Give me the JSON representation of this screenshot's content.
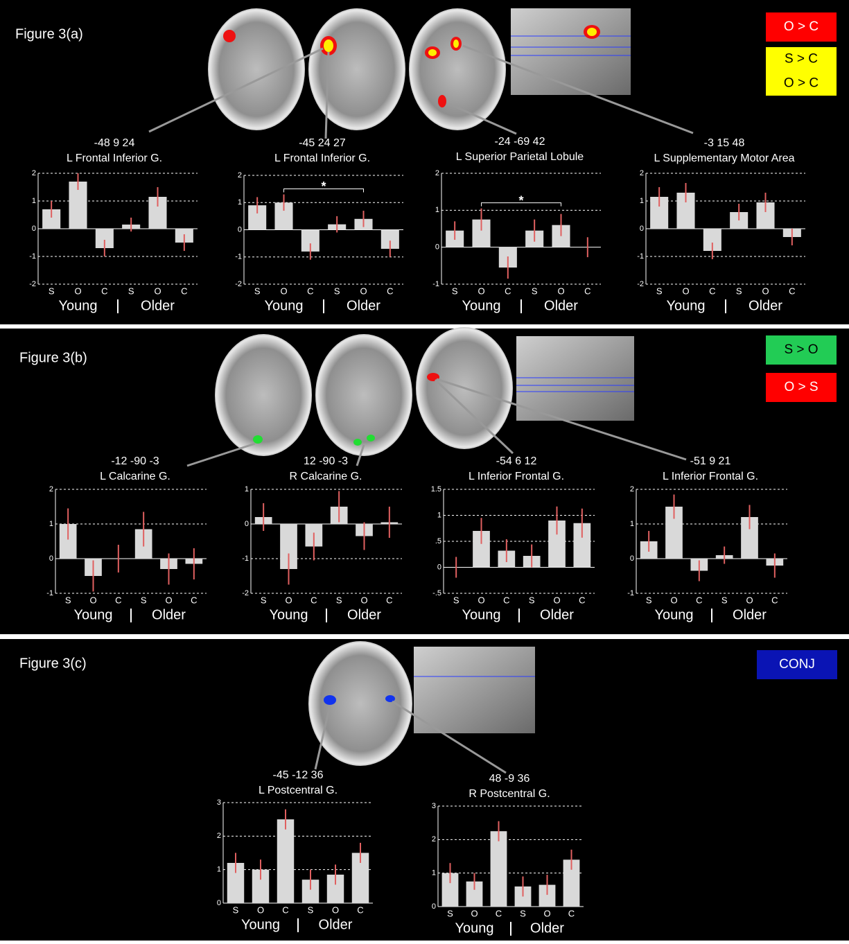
{
  "figure_labels": [
    "Figure 3(a)",
    "Figure 3(b)",
    "Figure 3(c)"
  ],
  "legends": [
    {
      "lines": [
        "O > C"
      ],
      "color": "#ff0000",
      "text_color": "#ffffff"
    },
    {
      "lines": [
        "S > C",
        "O > C"
      ],
      "color": "#ffff00",
      "text_color": "#000000"
    },
    {
      "lines": [
        "S > O"
      ],
      "color": "#22cc55",
      "text_color": "#000000"
    },
    {
      "lines": [
        "O > S"
      ],
      "color": "#ff0000",
      "text_color": "#ffffff"
    },
    {
      "lines": [
        "CONJ"
      ],
      "color": "#0a14b4",
      "text_color": "#ffffff"
    }
  ],
  "chart_data": [
    {
      "type": "bar",
      "title": "-48 9 24",
      "subtitle": "L Frontal Inferior G.",
      "categories": [
        "S",
        "O",
        "C",
        "S",
        "O",
        "C"
      ],
      "groups": [
        "Young",
        "Older"
      ],
      "values": [
        0.7,
        1.7,
        -0.7,
        0.15,
        1.15,
        -0.5
      ],
      "errors": [
        0.3,
        0.3,
        0.3,
        0.25,
        0.35,
        0.3
      ],
      "ylim": [
        -2,
        2
      ],
      "yticks": [
        -2,
        -1,
        0,
        1,
        2
      ],
      "color": "#d9d9d9",
      "error_color": "#e06060",
      "grid": true
    },
    {
      "type": "bar",
      "title": "-45 24 27",
      "subtitle": "L Frontal Inferior G.",
      "categories": [
        "S",
        "O",
        "C",
        "S",
        "O",
        "C"
      ],
      "groups": [
        "Young",
        "Older"
      ],
      "values": [
        0.9,
        1.0,
        -0.8,
        0.2,
        0.4,
        -0.7
      ],
      "errors": [
        0.3,
        0.3,
        0.3,
        0.3,
        0.3,
        0.3
      ],
      "ylim": [
        -2,
        2
      ],
      "yticks": [
        -2,
        -1,
        0,
        1,
        2
      ],
      "color": "#d9d9d9",
      "error_color": "#e06060",
      "grid": true,
      "significance": {
        "label": "*",
        "bars": [
          1,
          4
        ]
      }
    },
    {
      "type": "bar",
      "title": "-24 -69 42",
      "subtitle": "L Superior Parietal Lobule",
      "categories": [
        "S",
        "O",
        "C",
        "S",
        "O",
        "C"
      ],
      "groups": [
        "Young",
        "Older"
      ],
      "values": [
        0.45,
        0.75,
        -0.55,
        0.45,
        0.6,
        0.0
      ],
      "errors": [
        0.25,
        0.3,
        0.3,
        0.3,
        0.3,
        0.27
      ],
      "ylim": [
        -1,
        2
      ],
      "yticks": [
        -1,
        0,
        1,
        2
      ],
      "color": "#d9d9d9",
      "error_color": "#e06060",
      "grid": true,
      "significance": {
        "label": "*",
        "bars": [
          1,
          4
        ]
      }
    },
    {
      "type": "bar",
      "title": "-3 15 48",
      "subtitle": "L Supplementary Motor Area",
      "categories": [
        "S",
        "O",
        "C",
        "S",
        "O",
        "C"
      ],
      "groups": [
        "Young",
        "Older"
      ],
      "values": [
        1.15,
        1.3,
        -0.8,
        0.6,
        0.95,
        -0.3
      ],
      "errors": [
        0.35,
        0.35,
        0.3,
        0.3,
        0.35,
        0.3
      ],
      "ylim": [
        -2,
        2
      ],
      "yticks": [
        -2,
        -1,
        0,
        1,
        2
      ],
      "color": "#d9d9d9",
      "error_color": "#e06060",
      "grid": true
    },
    {
      "type": "bar",
      "title": "-12 -90 -3",
      "subtitle": "L Calcarine G.",
      "categories": [
        "S",
        "O",
        "C",
        "S",
        "O",
        "C"
      ],
      "groups": [
        "Young",
        "Older"
      ],
      "values": [
        1.0,
        -0.5,
        0.0,
        0.85,
        -0.3,
        -0.15
      ],
      "errors": [
        0.45,
        0.45,
        0.4,
        0.5,
        0.45,
        0.45
      ],
      "ylim": [
        -1,
        2
      ],
      "yticks": [
        -1,
        0,
        1,
        2
      ],
      "color": "#d9d9d9",
      "error_color": "#e06060",
      "grid": true
    },
    {
      "type": "bar",
      "title": "12 -90 -3",
      "subtitle": "R Calcarine G.",
      "categories": [
        "S",
        "O",
        "C",
        "S",
        "O",
        "C"
      ],
      "groups": [
        "Young",
        "Older"
      ],
      "values": [
        0.2,
        -1.3,
        -0.65,
        0.5,
        -0.35,
        0.05
      ],
      "errors": [
        0.4,
        0.45,
        0.4,
        0.45,
        0.4,
        0.45
      ],
      "ylim": [
        -2,
        1
      ],
      "yticks": [
        -2,
        -1,
        0,
        1
      ],
      "color": "#d9d9d9",
      "error_color": "#e06060",
      "grid": true
    },
    {
      "type": "bar",
      "title": "-54 6 12",
      "subtitle": "L Inferior Frontal G.",
      "categories": [
        "S",
        "O",
        "C",
        "S",
        "O",
        "C"
      ],
      "groups": [
        "Young",
        "Older"
      ],
      "values": [
        0.0,
        0.7,
        0.32,
        0.22,
        0.9,
        0.85
      ],
      "errors": [
        0.2,
        0.25,
        0.22,
        0.22,
        0.27,
        0.28
      ],
      "ylim": [
        -0.5,
        1.5
      ],
      "yticks": [
        {
          "value": -0.5,
          "label": "-.5"
        },
        0,
        {
          "value": 0.5,
          "label": ".5"
        },
        1,
        1.5
      ],
      "color": "#d9d9d9",
      "error_color": "#e06060",
      "grid": true
    },
    {
      "type": "bar",
      "title": "-51 9 21",
      "subtitle": "L Inferior Frontal G.",
      "categories": [
        "S",
        "O",
        "C",
        "S",
        "O",
        "C"
      ],
      "groups": [
        "Young",
        "Older"
      ],
      "values": [
        0.5,
        1.5,
        -0.35,
        0.1,
        1.2,
        -0.2
      ],
      "errors": [
        0.3,
        0.35,
        0.3,
        0.25,
        0.35,
        0.35
      ],
      "ylim": [
        -1,
        2
      ],
      "yticks": [
        -1,
        0,
        1,
        2
      ],
      "color": "#d9d9d9",
      "error_color": "#e06060",
      "grid": true
    },
    {
      "type": "bar",
      "title": "-45 -12 36",
      "subtitle": "L Postcentral G.",
      "categories": [
        "S",
        "O",
        "C",
        "S",
        "O",
        "C"
      ],
      "groups": [
        "Young",
        "Older"
      ],
      "values": [
        1.2,
        1.0,
        2.5,
        0.7,
        0.85,
        1.5
      ],
      "errors": [
        0.3,
        0.3,
        0.3,
        0.3,
        0.3,
        0.3
      ],
      "ylim": [
        0,
        3
      ],
      "yticks": [
        0,
        1,
        2,
        3
      ],
      "color": "#d9d9d9",
      "error_color": "#e06060",
      "grid": true
    },
    {
      "type": "bar",
      "title": "48 -9 36",
      "subtitle": "R Postcentral G.",
      "categories": [
        "S",
        "O",
        "C",
        "S",
        "O",
        "C"
      ],
      "groups": [
        "Young",
        "Older"
      ],
      "values": [
        1.0,
        0.75,
        2.25,
        0.6,
        0.65,
        1.4
      ],
      "errors": [
        0.3,
        0.25,
        0.3,
        0.3,
        0.3,
        0.3
      ],
      "ylim": [
        0,
        3
      ],
      "yticks": [
        0,
        1,
        2,
        3
      ],
      "color": "#d9d9d9",
      "error_color": "#e06060",
      "grid": true
    }
  ]
}
